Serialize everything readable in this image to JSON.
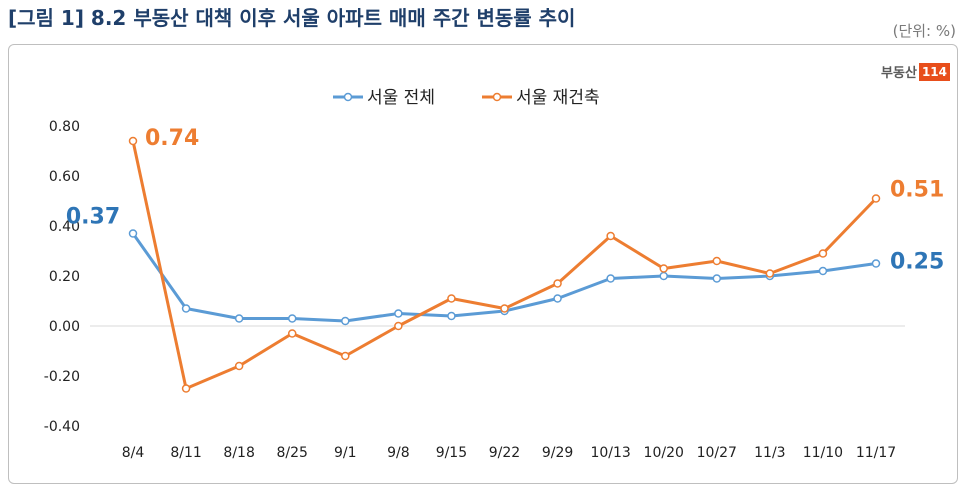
{
  "header": {
    "title": "[그림 1] 8.2 부동산 대책 이후 서울 아파트 매매 주간 변동률 추이",
    "unit": "(단위: %)"
  },
  "brand": {
    "text": "부동산",
    "badge": "114"
  },
  "chart_data": {
    "type": "line",
    "categories": [
      "8/4",
      "8/11",
      "8/18",
      "8/25",
      "9/1",
      "9/8",
      "9/15",
      "9/22",
      "9/29",
      "10/13",
      "10/20",
      "10/27",
      "11/3",
      "11/10",
      "11/17"
    ],
    "series": [
      {
        "name": "서울 전체",
        "color": "#5b9bd5",
        "values": [
          0.37,
          0.07,
          0.03,
          0.03,
          0.02,
          0.05,
          0.04,
          0.06,
          0.11,
          0.19,
          0.2,
          0.19,
          0.2,
          0.22,
          0.25
        ]
      },
      {
        "name": "서울 재건축",
        "color": "#ed7d31",
        "values": [
          0.74,
          -0.25,
          -0.16,
          -0.03,
          -0.12,
          0.0,
          0.11,
          0.07,
          0.17,
          0.36,
          0.23,
          0.26,
          0.21,
          0.29,
          0.51
        ]
      }
    ],
    "ylim": [
      -0.4,
      0.8
    ],
    "yticks": [
      "0.80",
      "0.60",
      "0.40",
      "0.20",
      "0.00",
      "-0.20",
      "-0.40"
    ],
    "ytick_values": [
      0.8,
      0.6,
      0.4,
      0.2,
      0.0,
      -0.2,
      -0.4
    ],
    "annotations": [
      {
        "text": "0.74",
        "series": 1,
        "index": 0,
        "side": "right"
      },
      {
        "text": "0.37",
        "series": 0,
        "index": 0,
        "side": "left"
      },
      {
        "text": "0.51",
        "series": 1,
        "index": 14,
        "side": "right"
      },
      {
        "text": "0.25",
        "series": 0,
        "index": 14,
        "side": "right"
      }
    ],
    "legend_position": "top",
    "grid": false
  }
}
